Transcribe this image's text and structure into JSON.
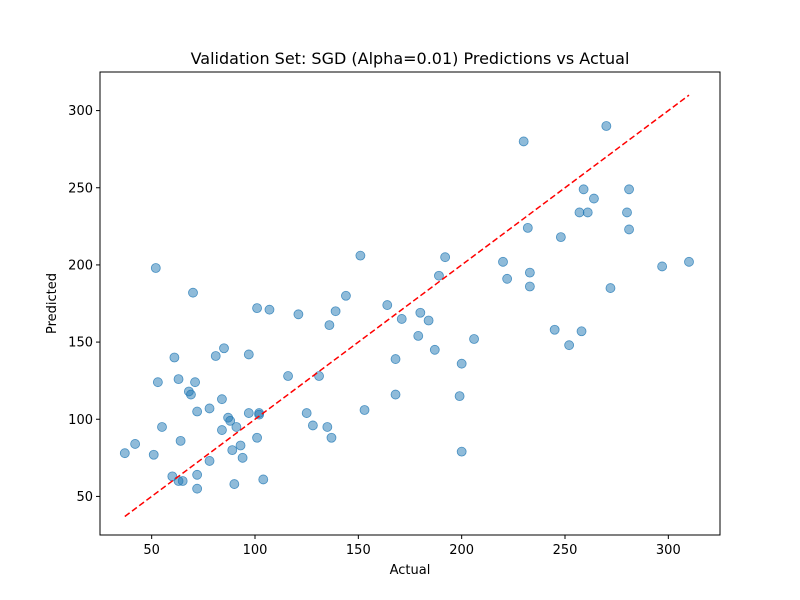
{
  "chart_data": {
    "type": "scatter",
    "title": "Validation Set: SGD (Alpha=0.01) Predictions vs Actual",
    "xlabel": "Actual",
    "ylabel": "Predicted",
    "xlim": [
      25,
      325
    ],
    "ylim": [
      25,
      325
    ],
    "xticks": [
      50,
      100,
      150,
      200,
      250,
      300
    ],
    "yticks": [
      50,
      100,
      150,
      200,
      250,
      300
    ],
    "xtick_labels": [
      "50",
      "100",
      "150",
      "200",
      "250",
      "300"
    ],
    "ytick_labels": [
      "50",
      "100",
      "150",
      "200",
      "250",
      "300"
    ],
    "grid": false,
    "point_color": "#1f77b4",
    "point_alpha": 0.5,
    "reference_line": {
      "x": [
        37,
        310
      ],
      "y": [
        37,
        310
      ],
      "color": "#ff0000",
      "style": "dashed"
    },
    "points": [
      [
        37,
        78
      ],
      [
        42,
        84
      ],
      [
        51,
        77
      ],
      [
        52,
        198
      ],
      [
        53,
        124
      ],
      [
        55,
        95
      ],
      [
        60,
        63
      ],
      [
        61,
        140
      ],
      [
        63,
        126
      ],
      [
        63,
        60
      ],
      [
        64,
        86
      ],
      [
        65,
        60
      ],
      [
        68,
        118
      ],
      [
        69,
        116
      ],
      [
        70,
        182
      ],
      [
        71,
        124
      ],
      [
        72,
        105
      ],
      [
        72,
        64
      ],
      [
        72,
        55
      ],
      [
        78,
        107
      ],
      [
        78,
        73
      ],
      [
        81,
        141
      ],
      [
        84,
        113
      ],
      [
        84,
        93
      ],
      [
        85,
        146
      ],
      [
        87,
        101
      ],
      [
        88,
        99
      ],
      [
        89,
        80
      ],
      [
        90,
        58
      ],
      [
        91,
        95
      ],
      [
        93,
        83
      ],
      [
        94,
        75
      ],
      [
        97,
        142
      ],
      [
        97,
        104
      ],
      [
        101,
        88
      ],
      [
        101,
        172
      ],
      [
        102,
        104
      ],
      [
        102,
        103
      ],
      [
        104,
        61
      ],
      [
        107,
        171
      ],
      [
        116,
        128
      ],
      [
        121,
        168
      ],
      [
        125,
        104
      ],
      [
        128,
        96
      ],
      [
        131,
        128
      ],
      [
        135,
        95
      ],
      [
        136,
        161
      ],
      [
        137,
        88
      ],
      [
        139,
        170
      ],
      [
        144,
        180
      ],
      [
        151,
        206
      ],
      [
        153,
        106
      ],
      [
        164,
        174
      ],
      [
        168,
        139
      ],
      [
        168,
        116
      ],
      [
        171,
        165
      ],
      [
        179,
        154
      ],
      [
        180,
        169
      ],
      [
        184,
        164
      ],
      [
        187,
        145
      ],
      [
        189,
        193
      ],
      [
        192,
        205
      ],
      [
        199,
        115
      ],
      [
        200,
        136
      ],
      [
        200,
        79
      ],
      [
        206,
        152
      ],
      [
        220,
        202
      ],
      [
        222,
        191
      ],
      [
        230,
        280
      ],
      [
        232,
        224
      ],
      [
        233,
        195
      ],
      [
        233,
        186
      ],
      [
        245,
        158
      ],
      [
        248,
        218
      ],
      [
        252,
        148
      ],
      [
        257,
        234
      ],
      [
        258,
        157
      ],
      [
        259,
        249
      ],
      [
        261,
        234
      ],
      [
        264,
        243
      ],
      [
        270,
        290
      ],
      [
        272,
        185
      ],
      [
        280,
        234
      ],
      [
        281,
        249
      ],
      [
        281,
        223
      ],
      [
        297,
        199
      ],
      [
        310,
        202
      ]
    ]
  }
}
